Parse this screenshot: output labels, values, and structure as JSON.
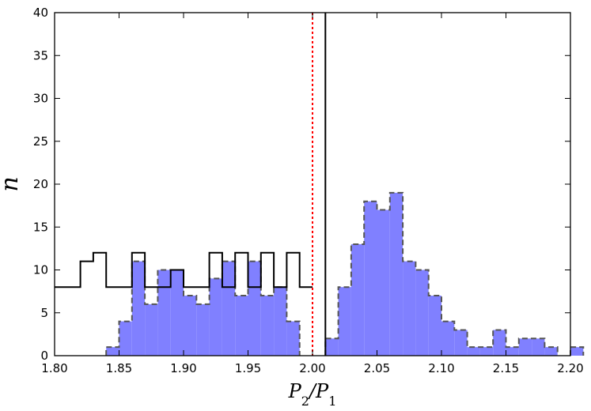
{
  "chart_data": {
    "type": "histogram",
    "xlabel": "P₂/P₁",
    "ylabel": "n",
    "xlim": [
      1.8,
      2.2
    ],
    "ylim": [
      0,
      40
    ],
    "xticks": [
      "1.80",
      "1.85",
      "1.90",
      "1.95",
      "2.00",
      "2.05",
      "2.10",
      "2.15",
      "2.20"
    ],
    "yticks": [
      "0",
      "5",
      "10",
      "15",
      "20",
      "25",
      "30",
      "35",
      "40"
    ],
    "bin_width": 0.01,
    "grid": false,
    "series": [
      {
        "style": "filled-dashed",
        "color": "#8080ff",
        "edge_color": "#555555",
        "bins": [
          {
            "x": 1.84,
            "n": 1
          },
          {
            "x": 1.85,
            "n": 4
          },
          {
            "x": 1.86,
            "n": 11
          },
          {
            "x": 1.87,
            "n": 6
          },
          {
            "x": 1.88,
            "n": 10
          },
          {
            "x": 1.89,
            "n": 10
          },
          {
            "x": 1.9,
            "n": 7
          },
          {
            "x": 1.91,
            "n": 6
          },
          {
            "x": 1.92,
            "n": 9
          },
          {
            "x": 1.93,
            "n": 11
          },
          {
            "x": 1.94,
            "n": 7
          },
          {
            "x": 1.95,
            "n": 11
          },
          {
            "x": 1.96,
            "n": 7
          },
          {
            "x": 1.97,
            "n": 8
          },
          {
            "x": 1.98,
            "n": 4
          },
          {
            "x": 2.0,
            "n": 0
          },
          {
            "x": 2.01,
            "n": 2
          },
          {
            "x": 2.02,
            "n": 8
          },
          {
            "x": 2.03,
            "n": 13
          },
          {
            "x": 2.04,
            "n": 18
          },
          {
            "x": 2.05,
            "n": 17
          },
          {
            "x": 2.06,
            "n": 19
          },
          {
            "x": 2.07,
            "n": 11
          },
          {
            "x": 2.08,
            "n": 10
          },
          {
            "x": 2.09,
            "n": 7
          },
          {
            "x": 2.1,
            "n": 4
          },
          {
            "x": 2.11,
            "n": 3
          },
          {
            "x": 2.12,
            "n": 1
          },
          {
            "x": 2.13,
            "n": 1
          },
          {
            "x": 2.14,
            "n": 3
          },
          {
            "x": 2.15,
            "n": 1
          },
          {
            "x": 2.16,
            "n": 2
          },
          {
            "x": 2.17,
            "n": 2
          },
          {
            "x": 2.18,
            "n": 1
          },
          {
            "x": 2.19,
            "n": 0
          },
          {
            "x": 2.2,
            "n": 1
          }
        ]
      },
      {
        "style": "step-outline",
        "color": "#000000",
        "bins": [
          {
            "x": 1.8,
            "n": 8
          },
          {
            "x": 1.81,
            "n": 8
          },
          {
            "x": 1.82,
            "n": 11
          },
          {
            "x": 1.83,
            "n": 12
          },
          {
            "x": 1.84,
            "n": 8
          },
          {
            "x": 1.85,
            "n": 8
          },
          {
            "x": 1.86,
            "n": 12
          },
          {
            "x": 1.87,
            "n": 8
          },
          {
            "x": 1.88,
            "n": 8
          },
          {
            "x": 1.89,
            "n": 10
          },
          {
            "x": 1.9,
            "n": 8
          },
          {
            "x": 1.91,
            "n": 8
          },
          {
            "x": 1.92,
            "n": 12
          },
          {
            "x": 1.93,
            "n": 8
          },
          {
            "x": 1.94,
            "n": 12
          },
          {
            "x": 1.95,
            "n": 8
          },
          {
            "x": 1.96,
            "n": 12
          },
          {
            "x": 1.97,
            "n": 8
          },
          {
            "x": 1.98,
            "n": 12
          },
          {
            "x": 1.99,
            "n": 8
          }
        ]
      }
    ],
    "vlines": [
      {
        "x": 2.0,
        "color": "#ff0000",
        "style": "dotted"
      },
      {
        "x": 2.01,
        "color": "#000000",
        "style": "solid"
      }
    ]
  }
}
